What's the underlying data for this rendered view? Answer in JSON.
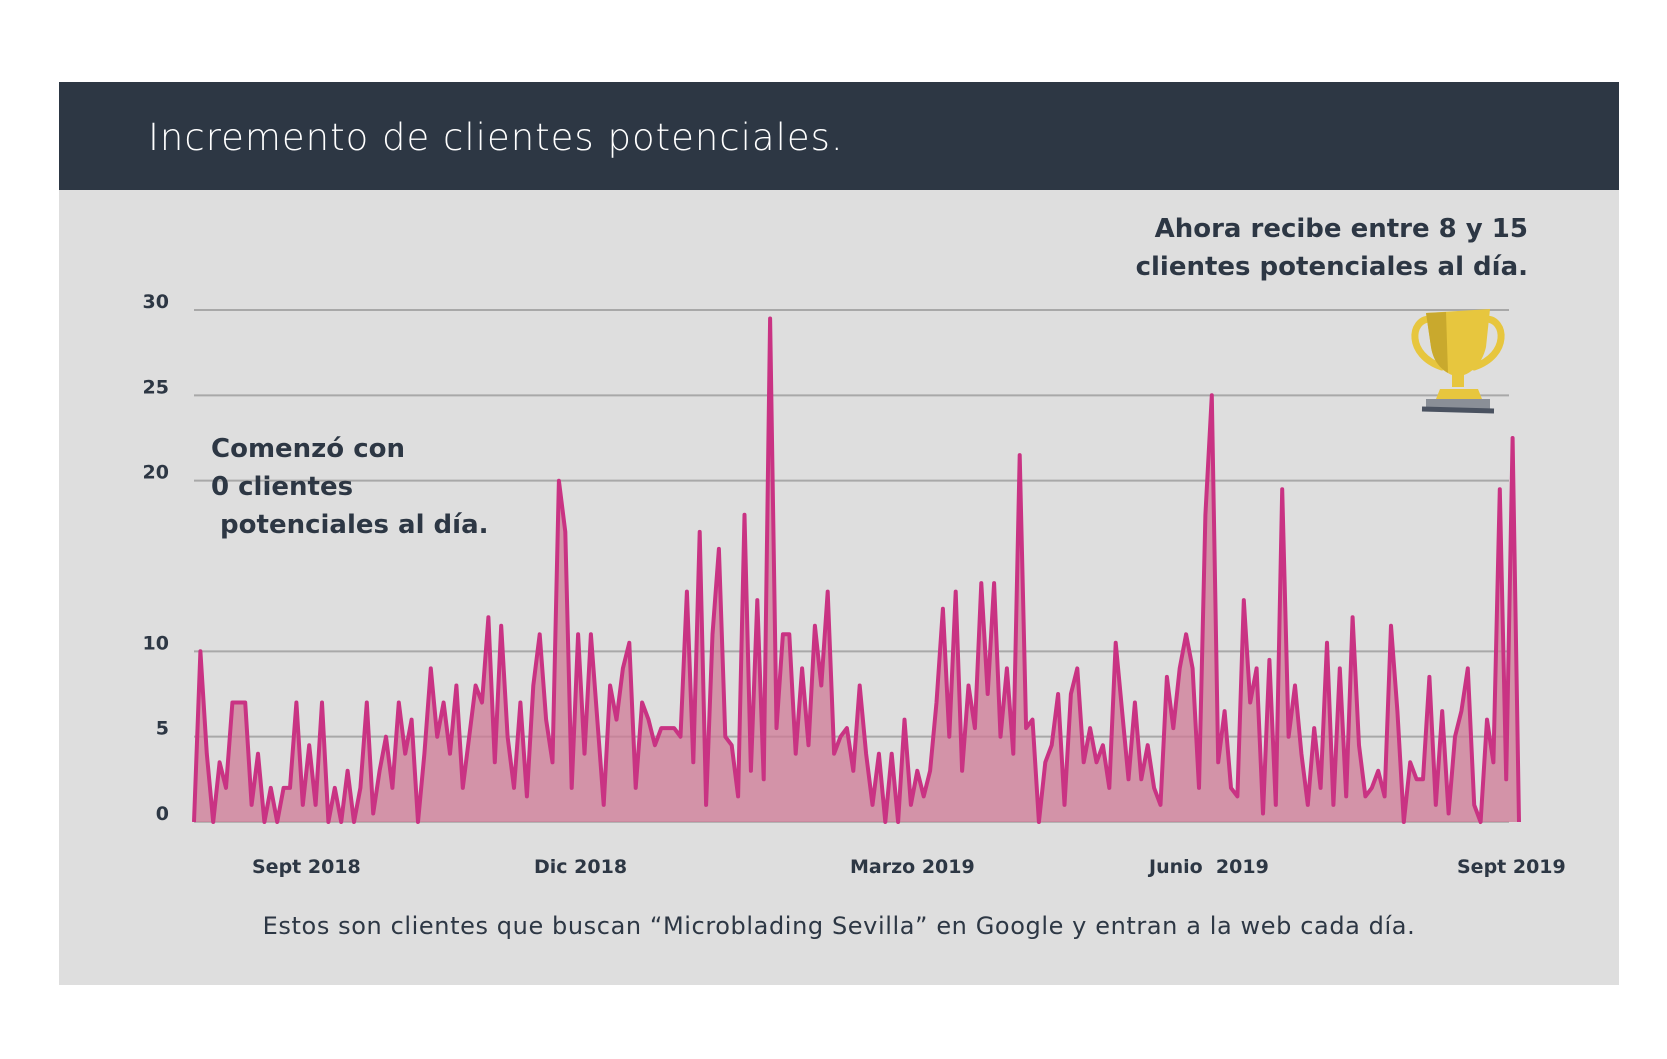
{
  "title": "Incremento de clientes potenciales.",
  "note_now": [
    "Ahora recibe entre 8 y 15",
    "clientes potenciales al día."
  ],
  "note_start": [
    "Comenzó con",
    "0 clientes",
    " potenciales al día."
  ],
  "caption": "Estos son clientes que buscan “Microblading Sevilla” en Google y entran a la web cada día.",
  "trophy_icon": "trophy-icon",
  "colors": {
    "header_bg": "#2d3744",
    "panel_bg": "#dedede",
    "line": "#c93383",
    "fill": "#cf7a95",
    "text": "#2d3744",
    "gold": "#e7c63e",
    "gold_dark": "#c9a92d"
  },
  "chart_data": {
    "type": "area",
    "title": "Incremento de clientes potenciales.",
    "xlabel": "",
    "ylabel": "",
    "ylim": [
      0,
      30
    ],
    "grid": true,
    "y_ticks": [
      0,
      5,
      10,
      20,
      25,
      30
    ],
    "x_tick_labels": [
      "Sept 2018",
      "Dic 2018",
      "Marzo 2019",
      "Junio  2019",
      "Sept 2019"
    ],
    "x_start": "2018-09-01",
    "x_end": "2019-09-24",
    "series": [
      {
        "name": "",
        "values": [
          0,
          10,
          4,
          0,
          3.5,
          2,
          7,
          7,
          7,
          1,
          4,
          0,
          2,
          0,
          2,
          2,
          7,
          1,
          4.5,
          1,
          7,
          0,
          2,
          0,
          3,
          0,
          2,
          7,
          0.5,
          3,
          5,
          2,
          7,
          4,
          6,
          0,
          4,
          9,
          5,
          7,
          4,
          8,
          2,
          5,
          8,
          7,
          12,
          3.5,
          11.5,
          5,
          2,
          7,
          1.5,
          8,
          11,
          6,
          3.5,
          20,
          17,
          2,
          11,
          4,
          11,
          6,
          1,
          8,
          6,
          9,
          10.5,
          2,
          7,
          6,
          4.5,
          5.5,
          5.5,
          5.5,
          5,
          13.5,
          3.5,
          17,
          1,
          11,
          16,
          5,
          4.5,
          1.5,
          18,
          3,
          13,
          2.5,
          29.5,
          5.5,
          11,
          11,
          4,
          9,
          4.5,
          11.5,
          8,
          13.5,
          4,
          5,
          5.5,
          3,
          8,
          4,
          1,
          4,
          0,
          4,
          0,
          6,
          1,
          3,
          1.5,
          3,
          7,
          12.5,
          5,
          13.5,
          3,
          8,
          5.5,
          14,
          7.5,
          14,
          5,
          9,
          4,
          21.5,
          5.5,
          6,
          0,
          3.5,
          4.5,
          7.5,
          1,
          7.5,
          9,
          3.5,
          5.5,
          3.5,
          4.5,
          2,
          10.5,
          6.5,
          2.5,
          7,
          2.5,
          4.5,
          2,
          1,
          8.5,
          5.5,
          9,
          11,
          9,
          2,
          18,
          25,
          3.5,
          6.5,
          2,
          1.5,
          13,
          7,
          9,
          0.5,
          9.5,
          1,
          19.5,
          5,
          8,
          4,
          1,
          5.5,
          2,
          10.5,
          1,
          9,
          1.5,
          12,
          4.5,
          1.5,
          2,
          3,
          1.5,
          11.5,
          6.5,
          0,
          3.5,
          2.5,
          2.5,
          8.5,
          1,
          6.5,
          0.5,
          5,
          6.5,
          9,
          1,
          0,
          6,
          3.5,
          19.5,
          2.5,
          22.5,
          0
        ]
      }
    ]
  }
}
